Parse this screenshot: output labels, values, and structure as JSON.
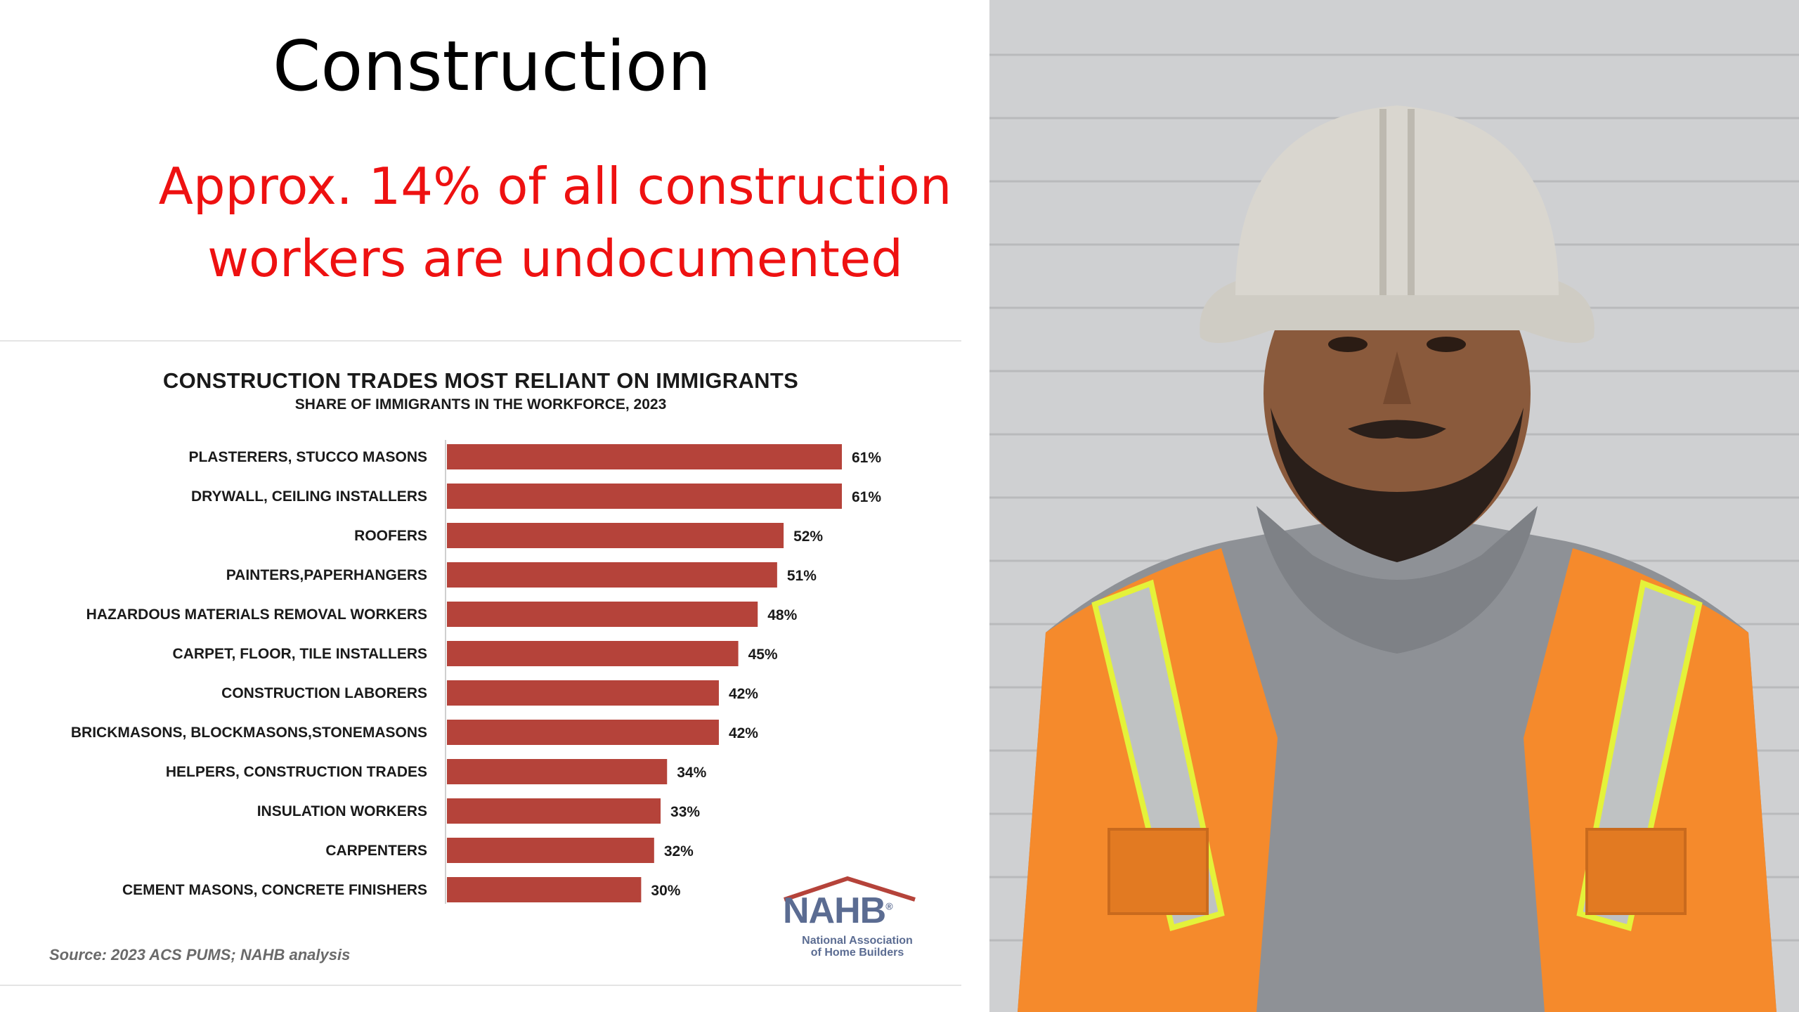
{
  "slide": {
    "title": "Construction",
    "subtitle_line1": "Approx. 14% of all construction",
    "subtitle_line2": "workers are undocumented"
  },
  "chart_data": {
    "type": "bar",
    "orientation": "horizontal",
    "title": "CONSTRUCTION TRADES MOST RELIANT ON IMMIGRANTS",
    "subtitle": "SHARE OF IMMIGRANTS IN THE WORKFORCE, 2023",
    "categories": [
      "PLASTERERS, STUCCO MASONS",
      "DRYWALL, CEILING INSTALLERS",
      "ROOFERS",
      "PAINTERS,PAPERHANGERS",
      "HAZARDOUS MATERIALS REMOVAL WORKERS",
      "CARPET, FLOOR, TILE INSTALLERS",
      "CONSTRUCTION LABORERS",
      "BRICKMASONS, BLOCKMASONS,STONEMASONS",
      "HELPERS, CONSTRUCTION TRADES",
      "INSULATION WORKERS",
      "CARPENTERS",
      "CEMENT MASONS, CONCRETE FINISHERS"
    ],
    "values": [
      61,
      61,
      52,
      51,
      48,
      45,
      42,
      42,
      34,
      33,
      32,
      30
    ],
    "value_labels": [
      "61%",
      "61%",
      "52%",
      "51%",
      "48%",
      "45%",
      "42%",
      "42%",
      "34%",
      "33%",
      "32%",
      "30%"
    ],
    "unit": "%",
    "xlim": [
      0,
      61
    ],
    "bar_color": "#b5433a",
    "grid": false,
    "legend": "none",
    "source": "Source: 2023 ACS PUMS; NAHB analysis"
  },
  "logo": {
    "text": "NAHB",
    "registered": "®",
    "caption_line1": "National Association",
    "caption_line2": "of Home Builders",
    "color": "#5b6c92"
  },
  "photo": {
    "vest_color": "#f58a2c",
    "hard_hat_color": "#d9d6cf",
    "hoodie_color": "#8e9196",
    "background_color": "#cfd0d2"
  },
  "colors": {
    "subtitle": "#ee1111",
    "bar": "#b5433a"
  }
}
